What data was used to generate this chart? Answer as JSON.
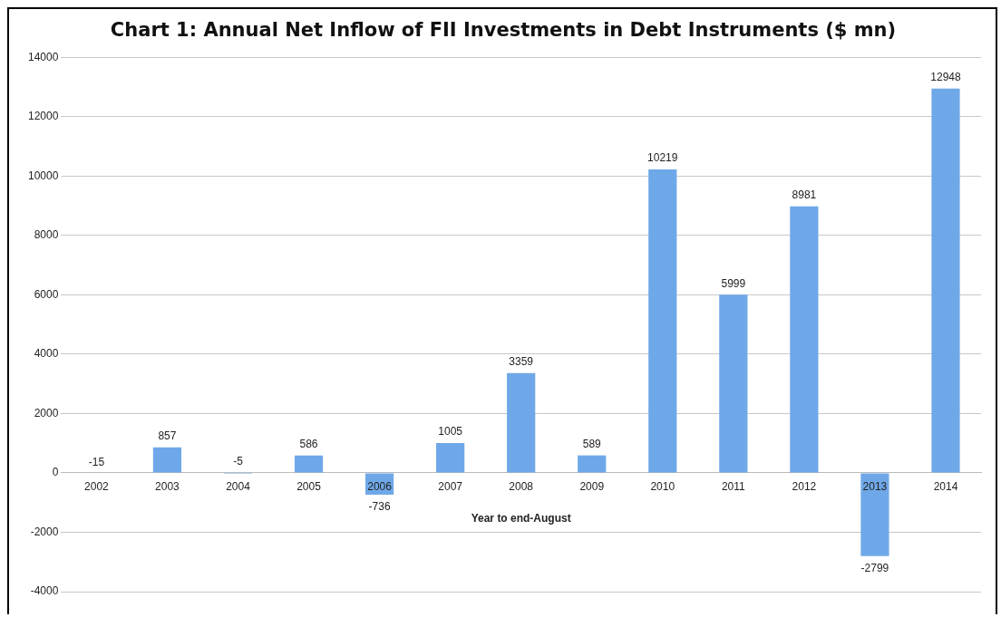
{
  "chart_data": {
    "type": "bar",
    "title": "Chart 1: Annual Net Inflow of FII Investments in Debt Instruments ($ mn)",
    "xlabel": "Year to end-August",
    "categories": [
      "2002",
      "2003",
      "2004",
      "2005",
      "2006",
      "2007",
      "2008",
      "2009",
      "2010",
      "2011",
      "2012",
      "2013",
      "2014"
    ],
    "values": [
      -15,
      857,
      -5,
      586,
      -736,
      1005,
      3359,
      589,
      10219,
      5999,
      8981,
      -2799,
      12948
    ],
    "color": "#6fa8e8",
    "ylim": [
      -4000,
      14000
    ],
    "yticks": [
      -4000,
      -2000,
      0,
      2000,
      4000,
      6000,
      8000,
      10000,
      12000,
      14000
    ],
    "grid": "y",
    "data_labels": true,
    "legend": false
  }
}
